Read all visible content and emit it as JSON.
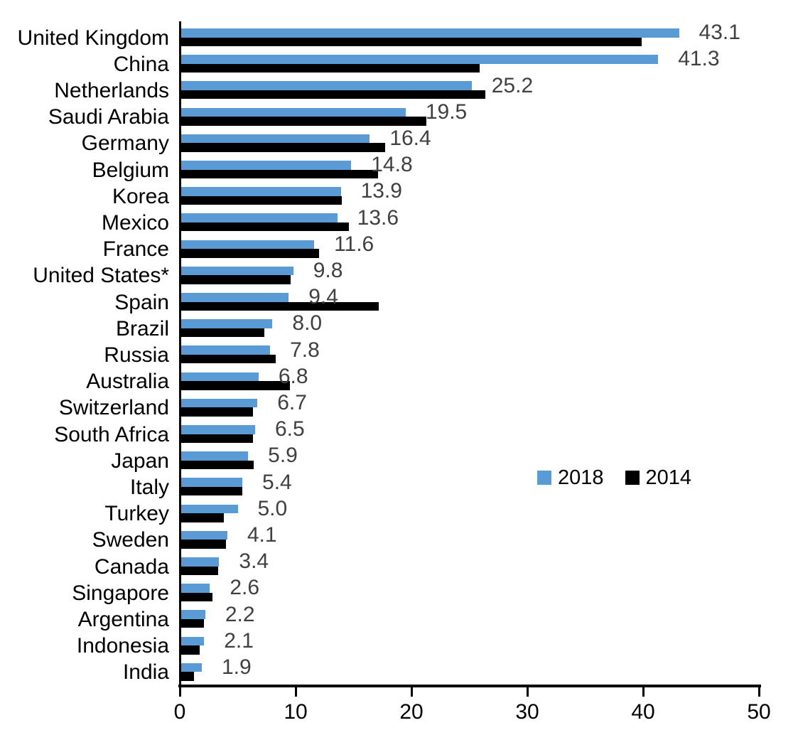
{
  "chart_data": {
    "type": "bar",
    "orientation": "horizontal",
    "title": "",
    "xlabel": "",
    "ylabel": "",
    "xlim": [
      0,
      50
    ],
    "x_ticks": [
      0,
      10,
      20,
      30,
      40,
      50
    ],
    "grid": false,
    "legend_position": "middle-right",
    "categories": [
      "United Kingdom",
      "China",
      "Netherlands",
      "Saudi Arabia",
      "Germany",
      "Belgium",
      "Korea",
      "Mexico",
      "France",
      "United States*",
      "Spain",
      "Brazil",
      "Russia",
      "Australia",
      "Switzerland",
      "South Africa",
      "Japan",
      "Italy",
      "Turkey",
      "Sweden",
      "Canada",
      "Singapore",
      "Argentina",
      "Indonesia",
      "India"
    ],
    "series": [
      {
        "name": "2018",
        "color": "#5B9BD5",
        "values": [
          43.1,
          41.3,
          25.2,
          19.5,
          16.4,
          14.8,
          13.9,
          13.6,
          11.6,
          9.8,
          9.4,
          8.0,
          7.8,
          6.8,
          6.7,
          6.5,
          5.9,
          5.4,
          5.0,
          4.1,
          3.4,
          2.6,
          2.2,
          2.1,
          1.9
        ]
      },
      {
        "name": "2014",
        "color": "#000000",
        "values": [
          39.9,
          25.9,
          26.4,
          21.3,
          17.7,
          17.1,
          14.0,
          14.6,
          12.0,
          9.6,
          17.2,
          7.3,
          8.3,
          9.5,
          6.3,
          6.3,
          6.4,
          5.4,
          3.8,
          4.0,
          3.3,
          2.8,
          2.1,
          1.7,
          1.2
        ]
      }
    ],
    "data_labels": {
      "series": "2018",
      "color": "#404040",
      "values": [
        "43.1",
        "41.3",
        "25.2",
        "19.5",
        "16.4",
        "14.8",
        "13.9",
        "13.6",
        "11.6",
        "9.8",
        "9.4",
        "8.0",
        "7.8",
        "6.8",
        "6.7",
        "6.5",
        "5.9",
        "5.4",
        "5.0",
        "4.1",
        "3.4",
        "2.6",
        "2.2",
        "2.1",
        "1.9"
      ]
    }
  },
  "colors": {
    "background": "#FFFFFF",
    "axis": "#000000",
    "category_text": "#000000",
    "tick_text": "#000000"
  }
}
